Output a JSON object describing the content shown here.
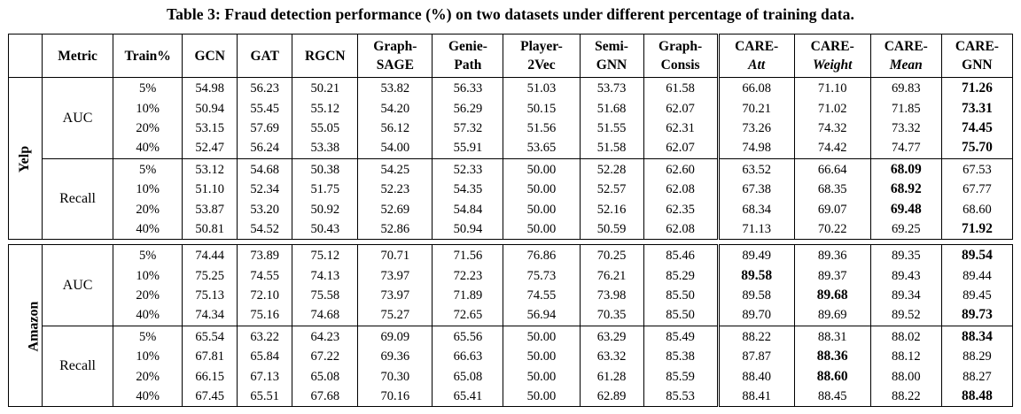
{
  "caption": "Table 3: Fraud detection performance (%) on two datasets under different percentage of training data.",
  "headers": {
    "metric": "Metric",
    "train": "Train%",
    "methods": [
      {
        "line1": "GCN",
        "line2": "",
        "italic2": false
      },
      {
        "line1": "GAT",
        "line2": "",
        "italic2": false
      },
      {
        "line1": "RGCN",
        "line2": "",
        "italic2": false
      },
      {
        "line1": "Graph-",
        "line2": "SAGE",
        "italic2": false
      },
      {
        "line1": "Genie-",
        "line2": "Path",
        "italic2": false
      },
      {
        "line1": "Player-",
        "line2": "2Vec",
        "italic2": false
      },
      {
        "line1": "Semi-",
        "line2": "GNN",
        "italic2": false
      },
      {
        "line1": "Graph-",
        "line2": "Consis",
        "italic2": false
      },
      {
        "line1": "CARE-",
        "line2": "Att",
        "italic2": true
      },
      {
        "line1": "CARE-",
        "line2": "Weight",
        "italic2": true
      },
      {
        "line1": "CARE-",
        "line2": "Mean",
        "italic2": true
      },
      {
        "line1": "CARE-",
        "line2": "GNN",
        "italic2": false
      }
    ]
  },
  "datasets": [
    {
      "name": "Yelp",
      "groups": [
        {
          "metric": "AUC",
          "rows": [
            {
              "train": "5%",
              "values": [
                "54.98",
                "56.23",
                "50.21",
                "53.82",
                "56.33",
                "51.03",
                "53.73",
                "61.58",
                "66.08",
                "71.10",
                "69.83",
                "71.26"
              ],
              "bold": [
                11
              ]
            },
            {
              "train": "10%",
              "values": [
                "50.94",
                "55.45",
                "55.12",
                "54.20",
                "56.29",
                "50.15",
                "51.68",
                "62.07",
                "70.21",
                "71.02",
                "71.85",
                "73.31"
              ],
              "bold": [
                11
              ]
            },
            {
              "train": "20%",
              "values": [
                "53.15",
                "57.69",
                "55.05",
                "56.12",
                "57.32",
                "51.56",
                "51.55",
                "62.31",
                "73.26",
                "74.32",
                "73.32",
                "74.45"
              ],
              "bold": [
                11
              ]
            },
            {
              "train": "40%",
              "values": [
                "52.47",
                "56.24",
                "53.38",
                "54.00",
                "55.91",
                "53.65",
                "51.58",
                "62.07",
                "74.98",
                "74.42",
                "74.77",
                "75.70"
              ],
              "bold": [
                11
              ]
            }
          ]
        },
        {
          "metric": "Recall",
          "rows": [
            {
              "train": "5%",
              "values": [
                "53.12",
                "54.68",
                "50.38",
                "54.25",
                "52.33",
                "50.00",
                "52.28",
                "62.60",
                "63.52",
                "66.64",
                "68.09",
                "67.53"
              ],
              "bold": [
                10
              ]
            },
            {
              "train": "10%",
              "values": [
                "51.10",
                "52.34",
                "51.75",
                "52.23",
                "54.35",
                "50.00",
                "52.57",
                "62.08",
                "67.38",
                "68.35",
                "68.92",
                "67.77"
              ],
              "bold": [
                10
              ]
            },
            {
              "train": "20%",
              "values": [
                "53.87",
                "53.20",
                "50.92",
                "52.69",
                "54.84",
                "50.00",
                "52.16",
                "62.35",
                "68.34",
                "69.07",
                "69.48",
                "68.60"
              ],
              "bold": [
                10
              ]
            },
            {
              "train": "40%",
              "values": [
                "50.81",
                "54.52",
                "50.43",
                "52.86",
                "50.94",
                "50.00",
                "50.59",
                "62.08",
                "71.13",
                "70.22",
                "69.25",
                "71.92"
              ],
              "bold": [
                11
              ]
            }
          ]
        }
      ]
    },
    {
      "name": "Amazon",
      "groups": [
        {
          "metric": "AUC",
          "rows": [
            {
              "train": "5%",
              "values": [
                "74.44",
                "73.89",
                "75.12",
                "70.71",
                "71.56",
                "76.86",
                "70.25",
                "85.46",
                "89.49",
                "89.36",
                "89.35",
                "89.54"
              ],
              "bold": [
                11
              ]
            },
            {
              "train": "10%",
              "values": [
                "75.25",
                "74.55",
                "74.13",
                "73.97",
                "72.23",
                "75.73",
                "76.21",
                "85.29",
                "89.58",
                "89.37",
                "89.43",
                "89.44"
              ],
              "bold": [
                8
              ]
            },
            {
              "train": "20%",
              "values": [
                "75.13",
                "72.10",
                "75.58",
                "73.97",
                "71.89",
                "74.55",
                "73.98",
                "85.50",
                "89.58",
                "89.68",
                "89.34",
                "89.45"
              ],
              "bold": [
                9
              ]
            },
            {
              "train": "40%",
              "values": [
                "74.34",
                "75.16",
                "74.68",
                "75.27",
                "72.65",
                "56.94",
                "70.35",
                "85.50",
                "89.70",
                "89.69",
                "89.52",
                "89.73"
              ],
              "bold": [
                11
              ]
            }
          ]
        },
        {
          "metric": "Recall",
          "rows": [
            {
              "train": "5%",
              "values": [
                "65.54",
                "63.22",
                "64.23",
                "69.09",
                "65.56",
                "50.00",
                "63.29",
                "85.49",
                "88.22",
                "88.31",
                "88.02",
                "88.34"
              ],
              "bold": [
                11
              ]
            },
            {
              "train": "10%",
              "values": [
                "67.81",
                "65.84",
                "67.22",
                "69.36",
                "66.63",
                "50.00",
                "63.32",
                "85.38",
                "87.87",
                "88.36",
                "88.12",
                "88.29"
              ],
              "bold": [
                9
              ]
            },
            {
              "train": "20%",
              "values": [
                "66.15",
                "67.13",
                "65.08",
                "70.30",
                "65.08",
                "50.00",
                "61.28",
                "85.59",
                "88.40",
                "88.60",
                "88.00",
                "88.27"
              ],
              "bold": [
                9
              ]
            },
            {
              "train": "40%",
              "values": [
                "67.45",
                "65.51",
                "67.68",
                "70.16",
                "65.41",
                "50.00",
                "62.89",
                "85.53",
                "88.41",
                "88.45",
                "88.22",
                "88.48"
              ],
              "bold": [
                11
              ]
            }
          ]
        }
      ]
    }
  ]
}
